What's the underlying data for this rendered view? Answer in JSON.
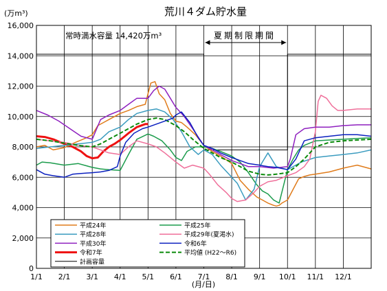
{
  "chart_data": {
    "type": "line",
    "title": "荒川４ダム貯水量",
    "ylabel": "(万m³)",
    "xlabel": "(月/日)",
    "ylim": [
      0,
      16000
    ],
    "yticks": [
      {
        "value": 0,
        "label": "0"
      },
      {
        "value": 2000,
        "label": "2,000"
      },
      {
        "value": 4000,
        "label": "4,000"
      },
      {
        "value": 6000,
        "label": "6,000"
      },
      {
        "value": 8000,
        "label": "8,000"
      },
      {
        "value": 10000,
        "label": "10,000"
      },
      {
        "value": 12000,
        "label": "12,000"
      },
      {
        "value": 14000,
        "label": "14,000"
      },
      {
        "value": 16000,
        "label": "16,000"
      }
    ],
    "xlim": [
      1,
      13
    ],
    "xticks": [
      {
        "value": 1,
        "label": "1/1"
      },
      {
        "value": 2,
        "label": "2/1"
      },
      {
        "value": 3,
        "label": "3/1"
      },
      {
        "value": 4,
        "label": "4/1"
      },
      {
        "value": 5,
        "label": "5/1"
      },
      {
        "value": 6,
        "label": "6/1"
      },
      {
        "value": 7,
        "label": "7/1"
      },
      {
        "value": 8,
        "label": "8/1"
      },
      {
        "value": 9,
        "label": "9/1"
      },
      {
        "value": 10,
        "label": "10/1"
      },
      {
        "value": 11,
        "label": "11/1"
      },
      {
        "value": 12,
        "label": "12/1"
      }
    ],
    "grid": true,
    "legend_position": "bottom-left",
    "annotations": {
      "full_capacity": "常時満水容量 14,420万m³",
      "summer_limit": "夏期制限期間"
    },
    "series": [
      {
        "name": "平成24年",
        "color": "#e07b1a",
        "width": 1.5,
        "dash": "",
        "x": [
          1,
          1.3,
          1.6,
          2,
          2.4,
          2.8,
          3,
          3.2,
          3.4,
          3.6,
          3.8,
          4,
          4.3,
          4.6,
          4.9,
          5,
          5.1,
          5.25,
          5.4,
          5.6,
          5.8,
          6,
          6.2,
          6.4,
          6.7,
          7,
          7.3,
          7.6,
          8,
          8.3,
          8.6,
          8.9,
          9.1,
          9.3,
          9.5,
          9.6,
          9.7,
          9.8,
          10,
          10.2,
          10.4,
          10.6,
          10.8,
          11,
          11.5,
          12,
          12.5,
          13
        ],
        "y": [
          8000,
          8100,
          7800,
          7950,
          8300,
          8600,
          8800,
          9400,
          9600,
          9800,
          10000,
          10200,
          10400,
          10650,
          10800,
          11500,
          12200,
          12300,
          11500,
          11100,
          10200,
          9700,
          9600,
          9300,
          8800,
          8100,
          7700,
          7400,
          6900,
          5800,
          5200,
          4700,
          4500,
          4300,
          4150,
          4100,
          4150,
          4300,
          4500,
          5200,
          5900,
          6050,
          6150,
          6200,
          6350,
          6600,
          6800,
          6550
        ]
      },
      {
        "name": "平成25年",
        "color": "#1a9b4b",
        "width": 1.5,
        "dash": "",
        "x": [
          1,
          1.2,
          1.5,
          2,
          2.5,
          3,
          3.3,
          3.6,
          4,
          4.3,
          4.6,
          5,
          5.2,
          5.5,
          5.8,
          6,
          6.2,
          6.4,
          6.7,
          7,
          7.3,
          7.6,
          8,
          8.3,
          8.6,
          8.9,
          9.1,
          9.3,
          9.5,
          9.7,
          10,
          10.2,
          10.4,
          10.6,
          11,
          11.5,
          12,
          12.5,
          13
        ],
        "y": [
          6800,
          7000,
          6950,
          6800,
          6900,
          6650,
          6550,
          6500,
          6450,
          7500,
          8500,
          8850,
          8700,
          8400,
          7800,
          7300,
          7100,
          7700,
          8000,
          8000,
          7900,
          7700,
          7400,
          7000,
          6300,
          5500,
          5100,
          4900,
          4500,
          4300,
          6500,
          7200,
          7800,
          8100,
          8400,
          8450,
          8500,
          8550,
          8600
        ]
      },
      {
        "name": "平成28年",
        "color": "#3a9bbf",
        "width": 1.5,
        "dash": "",
        "x": [
          1,
          1.5,
          2,
          2.5,
          3,
          3.3,
          3.6,
          4,
          4.3,
          4.6,
          5,
          5.3,
          5.6,
          5.9,
          6.2,
          6.5,
          6.8,
          7,
          7.3,
          7.6,
          7.9,
          8.2,
          8.5,
          8.8,
          9,
          9.3,
          9.6,
          10,
          10.5,
          11,
          11.5,
          12,
          12.5,
          13
        ],
        "y": [
          7900,
          8000,
          8100,
          8200,
          8300,
          8500,
          9000,
          9300,
          9800,
          10200,
          10400,
          10500,
          10300,
          9800,
          9000,
          8000,
          7500,
          7800,
          7500,
          6800,
          6200,
          5600,
          4500,
          5200,
          6700,
          7600,
          6700,
          6500,
          7000,
          7300,
          7400,
          7500,
          7600,
          7800
        ]
      },
      {
        "name": "平成29年(夏渇水)",
        "color": "#ef6f9a",
        "width": 1.5,
        "dash": "",
        "x": [
          1,
          1.5,
          2,
          2.5,
          3,
          3.3,
          3.6,
          4,
          4.3,
          4.6,
          5,
          5.3,
          5.6,
          6,
          6.3,
          6.6,
          7,
          7.2,
          7.5,
          7.8,
          8,
          8.2,
          8.5,
          8.8,
          9,
          9.3,
          9.6,
          10,
          10.3,
          10.6,
          10.8,
          11,
          11.1,
          11.2,
          11.4,
          11.6,
          11.8,
          12,
          12.5,
          13
        ],
        "y": [
          8500,
          8400,
          8300,
          8100,
          8000,
          7800,
          7600,
          7500,
          8000,
          8400,
          8200,
          8000,
          7600,
          7000,
          6600,
          6800,
          6600,
          6200,
          5500,
          5000,
          4600,
          4400,
          4500,
          5000,
          5400,
          5700,
          5800,
          6100,
          6300,
          6700,
          7200,
          9000,
          11000,
          11400,
          11200,
          10700,
          10400,
          10400,
          10500,
          10500
        ]
      },
      {
        "name": "平成30年",
        "color": "#8e1fbf",
        "width": 1.5,
        "dash": "",
        "x": [
          1,
          1.4,
          1.8,
          2.2,
          2.6,
          3,
          3.3,
          3.6,
          4,
          4.3,
          4.6,
          5,
          5.2,
          5.4,
          5.6,
          5.8,
          6,
          6.3,
          6.6,
          7,
          7.3,
          7.6,
          8,
          8.3,
          8.6,
          9,
          9.5,
          10,
          10.1,
          10.3,
          10.6,
          11,
          11.5,
          12,
          12.5,
          13
        ],
        "y": [
          10400,
          10100,
          9700,
          9200,
          8700,
          8500,
          9800,
          10100,
          10400,
          10800,
          11200,
          11200,
          11700,
          12000,
          11800,
          11200,
          10600,
          10000,
          9200,
          8100,
          7800,
          7500,
          7100,
          6900,
          6700,
          6700,
          6600,
          6700,
          7200,
          8800,
          9200,
          9300,
          9300,
          9400,
          9450,
          9450
        ]
      },
      {
        "name": "令和6年",
        "color": "#0a1fbf",
        "width": 1.5,
        "dash": "",
        "x": [
          1,
          1.3,
          1.6,
          2,
          2.3,
          2.6,
          3,
          3.3,
          3.6,
          3.9,
          4,
          4.2,
          4.5,
          4.8,
          5,
          5.3,
          5.6,
          5.9,
          6,
          6.2,
          6.5,
          6.8,
          7,
          7.3,
          7.6,
          8,
          8.3,
          8.6,
          9,
          9.3,
          9.6,
          10,
          10.3,
          10.6,
          11,
          11.5,
          12,
          12.5,
          13
        ],
        "y": [
          6500,
          6200,
          6100,
          6000,
          6200,
          6250,
          6300,
          6350,
          6450,
          6700,
          7400,
          8300,
          8900,
          9200,
          9300,
          9500,
          9700,
          9900,
          10100,
          10300,
          9600,
          8600,
          8100,
          7900,
          7600,
          7300,
          7100,
          6900,
          6800,
          6700,
          6650,
          6500,
          7200,
          8400,
          8600,
          8700,
          8800,
          8800,
          8700
        ]
      },
      {
        "name": "令和7年",
        "color": "#ee1111",
        "width": 3,
        "dash": "",
        "x": [
          1,
          1.3,
          1.6,
          2,
          2.3,
          2.6,
          2.8,
          3,
          3.2,
          3.4,
          3.6,
          3.8,
          4,
          4.3,
          4.6,
          4.9,
          5
        ],
        "y": [
          8700,
          8650,
          8500,
          8200,
          8000,
          7700,
          7400,
          7250,
          7300,
          7700,
          8000,
          8200,
          8450,
          8900,
          9300,
          9500,
          9500
        ]
      },
      {
        "name": "平均値 (H22～R6)",
        "color": "#0a8a0a",
        "width": 2,
        "dash": "6 3",
        "x": [
          1,
          1.5,
          2,
          2.5,
          3,
          3.3,
          3.6,
          4,
          4.3,
          4.6,
          5,
          5.3,
          5.6,
          6,
          6.3,
          6.6,
          7,
          7.3,
          7.6,
          8,
          8.3,
          8.6,
          9,
          9.3,
          9.6,
          10,
          10.3,
          10.6,
          11,
          11.5,
          12,
          12.5,
          13
        ],
        "y": [
          8500,
          8400,
          8250,
          8100,
          8000,
          8200,
          8500,
          8900,
          9200,
          9500,
          9800,
          9900,
          9800,
          9400,
          9000,
          8500,
          7900,
          7600,
          7300,
          7000,
          6700,
          6400,
          6200,
          6150,
          6200,
          6300,
          6700,
          7200,
          8000,
          8300,
          8400,
          8450,
          8500
        ]
      },
      {
        "name": "計画容量",
        "color": "#000000",
        "width": 1,
        "dash": "",
        "x": [
          1,
          7,
          7,
          10,
          10,
          13
        ],
        "y": [
          14100,
          14100,
          7800,
          7800,
          14100,
          14100
        ]
      }
    ]
  }
}
